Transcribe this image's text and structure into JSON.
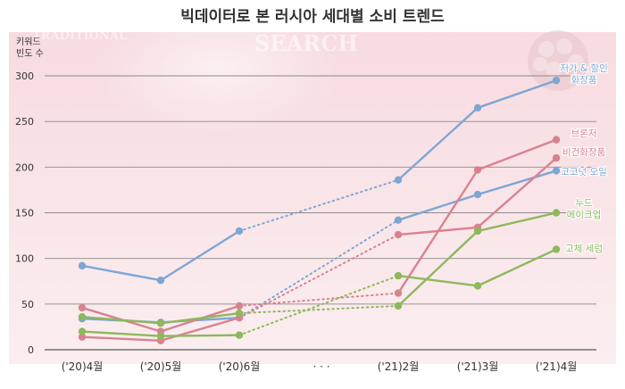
{
  "chart_data": {
    "type": "line",
    "title": "빅데이터로 본 러시아 세대별 소비 트렌드",
    "ylabel": "키워드\n빈도 수",
    "ylim": [
      0,
      300
    ],
    "yticks": [
      0,
      50,
      100,
      150,
      200,
      250,
      300
    ],
    "grid": true,
    "categories": [
      "('20)4월",
      "('20)5월",
      "('20)6월",
      "· · ·",
      "('21)2월",
      "('21)3월",
      "('21)4월"
    ],
    "gap_category": "· · ·",
    "colors": {
      "blue": "#7ea6d3",
      "red": "#d98290",
      "green": "#8db85c"
    },
    "series": [
      {
        "name": "저가 & 할인 화장품",
        "color": "blue",
        "values": [
          92,
          76,
          130,
          null,
          186,
          265,
          295
        ]
      },
      {
        "name": "코코넛 오일",
        "color": "blue",
        "values": [
          34,
          30,
          35,
          null,
          142,
          170,
          196
        ]
      },
      {
        "name": "브론저",
        "color": "red",
        "values": [
          46,
          20,
          48,
          null,
          62,
          197,
          230
        ]
      },
      {
        "name": "비건화장품",
        "color": "red",
        "values": [
          14,
          10,
          35,
          null,
          126,
          134,
          210
        ]
      },
      {
        "name": "누드 메이크업",
        "color": "green",
        "values": [
          36,
          29,
          40,
          null,
          48,
          130,
          150
        ]
      },
      {
        "name": "고체 세럼",
        "color": "green",
        "values": [
          20,
          15,
          16,
          null,
          81,
          70,
          110
        ]
      }
    ],
    "legend": [
      {
        "lines": [
          "저가 & 할인",
          "화장품"
        ],
        "color": "blue"
      },
      {
        "lines": [
          "브론저"
        ],
        "color": "red"
      },
      {
        "lines": [
          "비건화장품"
        ],
        "color": "red"
      },
      {
        "lines": [
          "코코넛 오일"
        ],
        "color": "blue"
      },
      {
        "lines": [
          "누드",
          "메이크업"
        ],
        "color": "green"
      },
      {
        "lines": [
          "고체 세럼"
        ],
        "color": "green"
      }
    ],
    "decor_text": [
      "SEARCH",
      "TRADITIONAL"
    ]
  }
}
